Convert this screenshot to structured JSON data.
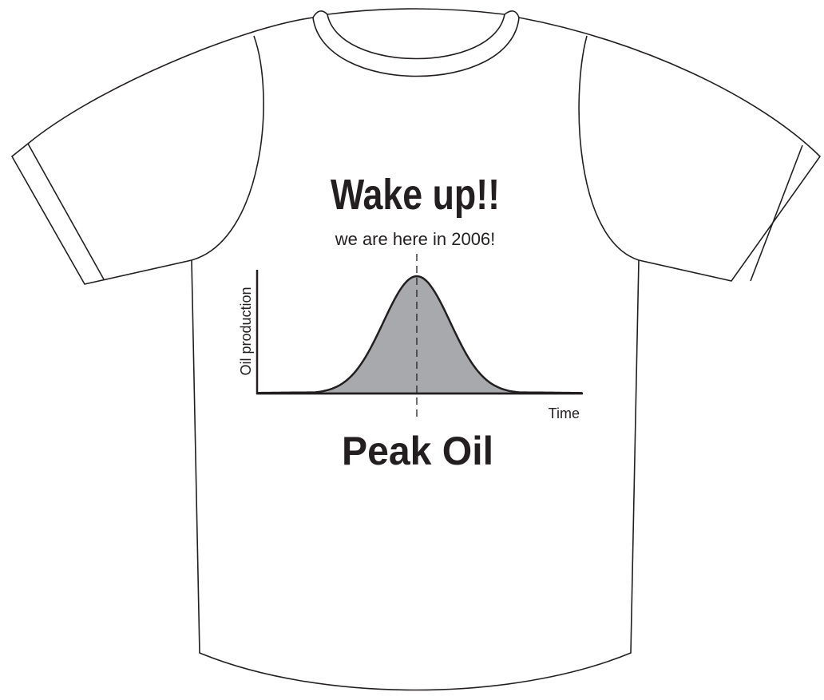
{
  "shirt": {
    "headline": "Wake up!!",
    "subtitle": "we are here in 2006!",
    "y_axis_label": "Oil production",
    "x_axis_label": "Time",
    "footer": "Peak Oil"
  }
}
